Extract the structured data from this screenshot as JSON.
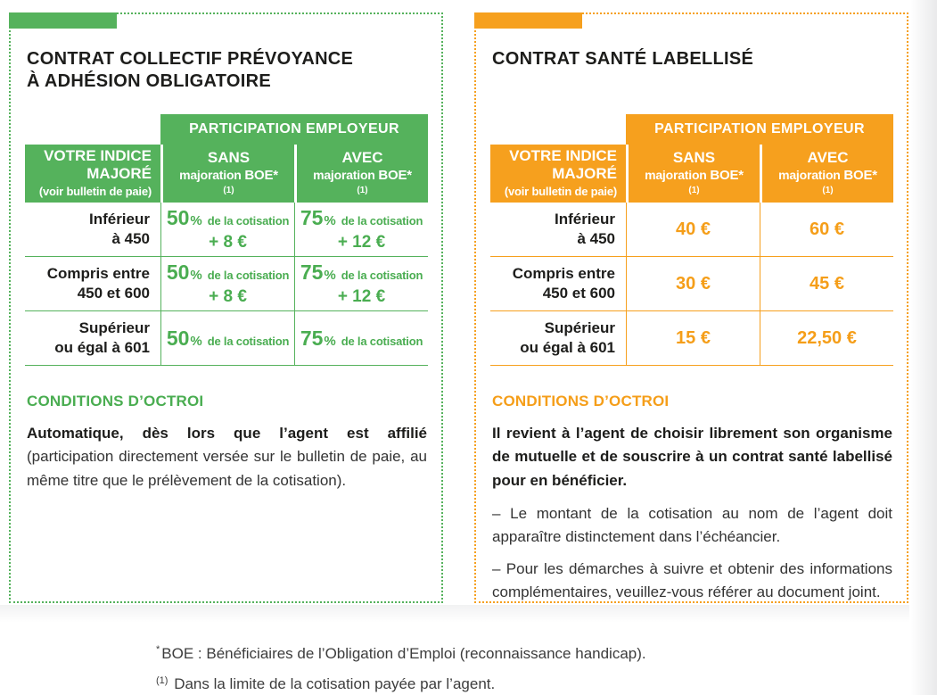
{
  "colors": {
    "green": "#55b25c",
    "orange": "#f6a01e",
    "title_black": "#1d1d1b"
  },
  "panels": [
    {
      "accent": "#55b25c",
      "title_line1": "CONTRAT COLLECTIF PRÉVOYANCE",
      "title_line2": "À ADHÉSION OBLIGATOIRE",
      "table": {
        "spanning_header": "PARTICIPATION EMPLOYEUR",
        "row_header_title": "VOTRE INDICE MAJORÉ",
        "row_header_note": "(voir bulletin de paie)",
        "columns": [
          {
            "word1": "SANS",
            "word2": "majoration ",
            "word2_bold": "BOE*",
            "sup": "(1)"
          },
          {
            "word1": "AVEC",
            "word2": "majoration ",
            "word2_bold": "BOE*",
            "sup": "(1)"
          }
        ],
        "rows": [
          {
            "label_line1": "Inférieur",
            "label_line2": "à 450",
            "sans": {
              "big": "50",
              "sym": "%",
              "small": "de la cotisation",
              "extra": "+ 8 €"
            },
            "avec": {
              "big": "75",
              "sym": "%",
              "small": "de la cotisation",
              "extra": "+ 12 €"
            }
          },
          {
            "label_line1": "Compris entre",
            "label_line2": "450 et 600",
            "sans": {
              "big": "50",
              "sym": "%",
              "small": "de la cotisation",
              "extra": "+ 8 €"
            },
            "avec": {
              "big": "75",
              "sym": "%",
              "small": "de la cotisation",
              "extra": "+ 12 €"
            }
          },
          {
            "label_line1": "Supérieur",
            "label_line2": "ou égal à 601",
            "sans": {
              "big": "50",
              "sym": "%",
              "small": "de la cotisation",
              "extra": ""
            },
            "avec": {
              "big": "75",
              "sym": "%",
              "small": "de la cotisation",
              "extra": ""
            }
          }
        ]
      },
      "conditions": {
        "heading": "CONDITIONS D’OCTROI",
        "bold": "Automatique, dès lors que l’agent est affilié",
        "rest": " (participation directement versée sur le bulletin de paie, au même titre que le prélèvement de la cotisation)."
      }
    },
    {
      "accent": "#f6a01e",
      "title_line1": "CONTRAT SANTÉ LABELLISÉ",
      "title_line2": "",
      "table": {
        "spanning_header": "PARTICIPATION EMPLOYEUR",
        "row_header_title": "VOTRE INDICE MAJORÉ",
        "row_header_note": "(voir bulletin de paie)",
        "columns": [
          {
            "word1": "SANS",
            "word2": "majoration ",
            "word2_bold": "BOE*",
            "sup": "(1)"
          },
          {
            "word1": "AVEC",
            "word2": "majoration ",
            "word2_bold": "BOE*",
            "sup": "(1)"
          }
        ],
        "rows": [
          {
            "label_line1": "Inférieur",
            "label_line2": "à 450",
            "sans": {
              "big": "40 €",
              "sym": "",
              "small": "",
              "extra": ""
            },
            "avec": {
              "big": "60 €",
              "sym": "",
              "small": "",
              "extra": ""
            }
          },
          {
            "label_line1": "Compris entre",
            "label_line2": "450 et 600",
            "sans": {
              "big": "30 €",
              "sym": "",
              "small": "",
              "extra": ""
            },
            "avec": {
              "big": "45 €",
              "sym": "",
              "small": "",
              "extra": ""
            }
          },
          {
            "label_line1": "Supérieur",
            "label_line2": "ou égal à 601",
            "sans": {
              "big": "15 €",
              "sym": "",
              "small": "",
              "extra": ""
            },
            "avec": {
              "big": "22,50 €",
              "sym": "",
              "small": "",
              "extra": ""
            }
          }
        ]
      },
      "conditions": {
        "heading": "CONDITIONS D’OCTROI",
        "bold": "Il revient à l’agent de choisir librement son organisme de mutuelle et de souscrire à un contrat santé labellisé pour en bénéficier.",
        "items": [
          "–  Le montant de la cotisation au nom de l’agent doit apparaître distinctement dans l’échéancier.",
          "–  Pour les démarches à suivre et obtenir des informations complémentaires, veuillez-vous référer au document joint."
        ]
      }
    }
  ],
  "footnotes": [
    {
      "sup": "*",
      "text": "BOE : Bénéficiaires de l’Obligation d’Emploi (reconnaissance handicap)."
    },
    {
      "sup": "(1)",
      "text": "Dans la limite de la cotisation payée par l’agent."
    }
  ]
}
